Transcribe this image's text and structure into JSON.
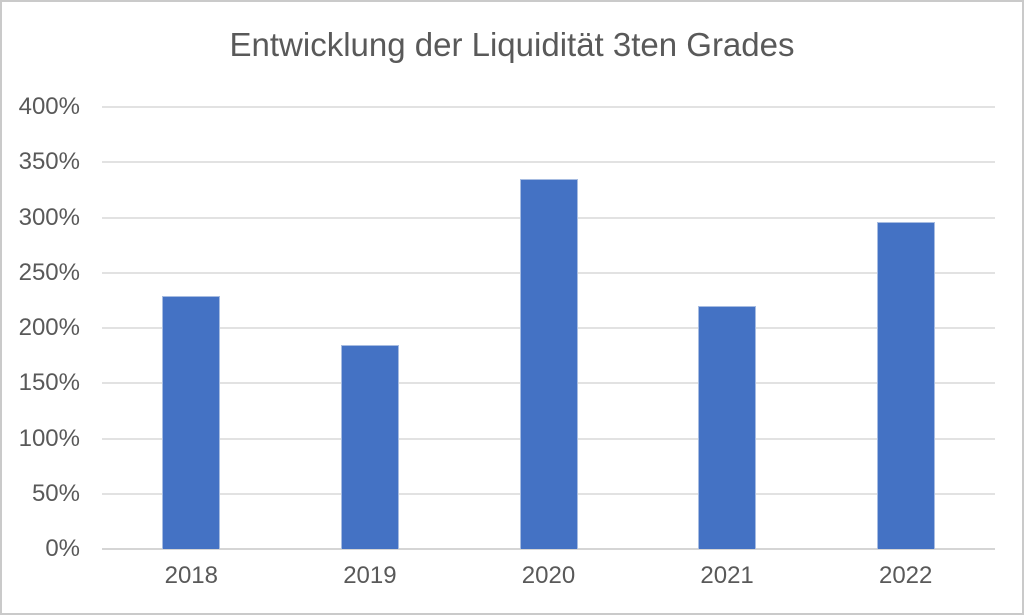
{
  "title": "Entwicklung der Liquidität 3ten Grades",
  "chart_data": {
    "type": "bar",
    "title": "Entwicklung der Liquidität 3ten Grades",
    "categories": [
      "2018",
      "2019",
      "2020",
      "2021",
      "2022"
    ],
    "values": [
      229,
      185,
      335,
      220,
      296
    ],
    "xlabel": "",
    "ylabel": "",
    "ylim": [
      0,
      400
    ],
    "ytick_step": 50,
    "yticks": [
      "0%",
      "50%",
      "100%",
      "150%",
      "200%",
      "250%",
      "300%",
      "350%",
      "400%"
    ],
    "grid": true,
    "legend_position": "none",
    "bar_color": "#4472C4",
    "bar_border_color": "#a7bce1",
    "gridline_color": "#e2e2e2",
    "axis_line_color": "#d5d5d5",
    "text_color": "#595959"
  }
}
